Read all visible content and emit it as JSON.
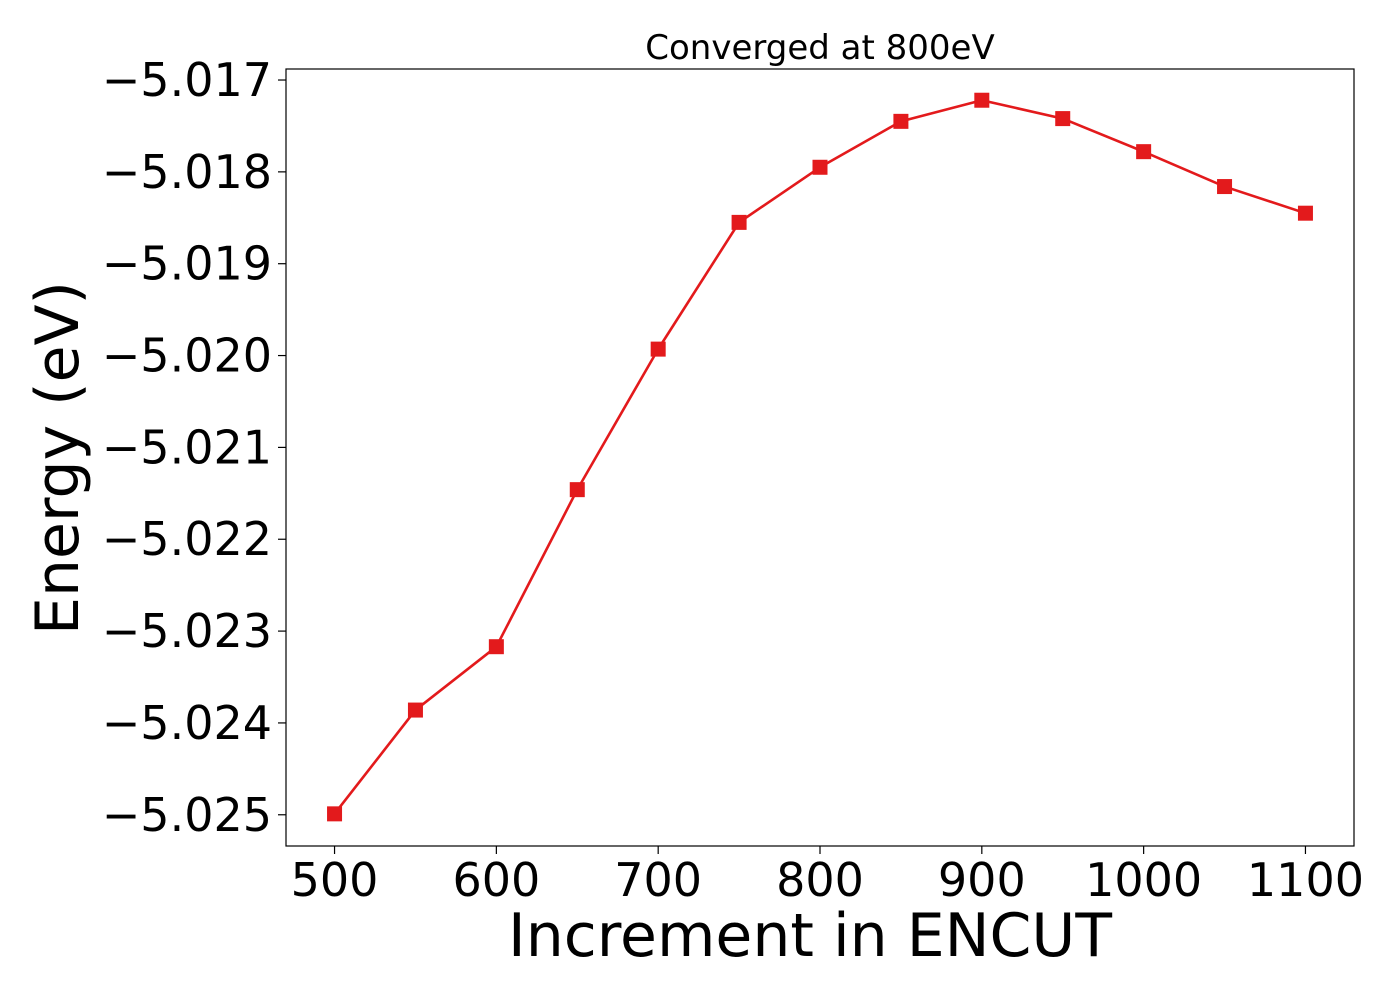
{
  "chart_data": {
    "type": "line",
    "title": "Converged at 800eV",
    "xlabel": "Increment in ENCUT",
    "ylabel": "Energy (eV)",
    "x": [
      500,
      550,
      600,
      650,
      700,
      750,
      800,
      850,
      900,
      950,
      1000,
      1050,
      1100
    ],
    "series": [
      {
        "values": [
          -5.02499,
          -5.02386,
          -5.02317,
          -5.02146,
          -5.01993,
          -5.01855,
          -5.01795,
          -5.01745,
          -5.01722,
          -5.01742,
          -5.01778,
          -5.01816,
          -5.01845
        ],
        "color": "#e31a1c",
        "marker": "square"
      }
    ],
    "xlim": [
      470,
      1130
    ],
    "ylim": [
      -5.02534,
      -5.01688
    ],
    "x_ticks": [
      500,
      600,
      700,
      800,
      900,
      1000,
      1100
    ],
    "x_tick_labels": [
      "500",
      "600",
      "700",
      "800",
      "900",
      "1000",
      "1100"
    ],
    "y_ticks": [
      -5.025,
      -5.024,
      -5.023,
      -5.022,
      -5.021,
      -5.02,
      -5.019,
      -5.018,
      -5.017
    ],
    "y_tick_labels": [
      "−5.025",
      "−5.024",
      "−5.023",
      "−5.022",
      "−5.021",
      "−5.020",
      "−5.019",
      "−5.018",
      "−5.017"
    ],
    "grid": false
  }
}
